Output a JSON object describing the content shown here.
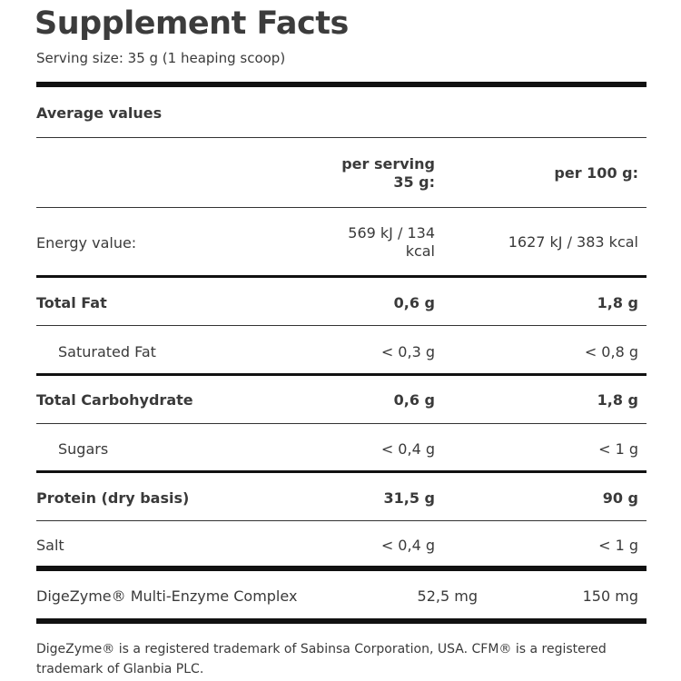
{
  "title": "Supplement Facts",
  "serving_size": "Serving size: 35 g (1 heaping scoop)",
  "section_label": "Average values",
  "columns": {
    "per_serving_line1": "per serving",
    "per_serving_line2": "35 g:",
    "per_100g": "per 100 g:"
  },
  "rows": [
    {
      "label": "Energy value:",
      "per_serving_line1": "569 kJ / 134",
      "per_serving_line2": "kcal",
      "per_100g": "1627 kJ / 383 kcal"
    },
    {
      "label": "Total Fat",
      "per_serving": "0,6 g",
      "per_100g": "1,8 g"
    },
    {
      "label": "Saturated Fat",
      "per_serving": "< 0,3 g",
      "per_100g": "< 0,8 g"
    },
    {
      "label": "Total Carbohydrate",
      "per_serving": "0,6 g",
      "per_100g": "1,8 g"
    },
    {
      "label": "Sugars",
      "per_serving": "< 0,4 g",
      "per_100g": "< 1 g"
    },
    {
      "label": "Protein (dry basis)",
      "per_serving": "31,5 g",
      "per_100g": "90 g"
    },
    {
      "label": "Salt",
      "per_serving": "< 0,4 g",
      "per_100g": "< 1 g"
    },
    {
      "label": "DigeZyme® Multi-Enzyme Complex",
      "per_serving": "52,5 mg",
      "per_100g": "150 mg"
    }
  ],
  "footnote": "DigeZyme® is a registered trademark of Sabinsa Corporation, USA. CFM® is a registered trademark of Glanbia PLC."
}
